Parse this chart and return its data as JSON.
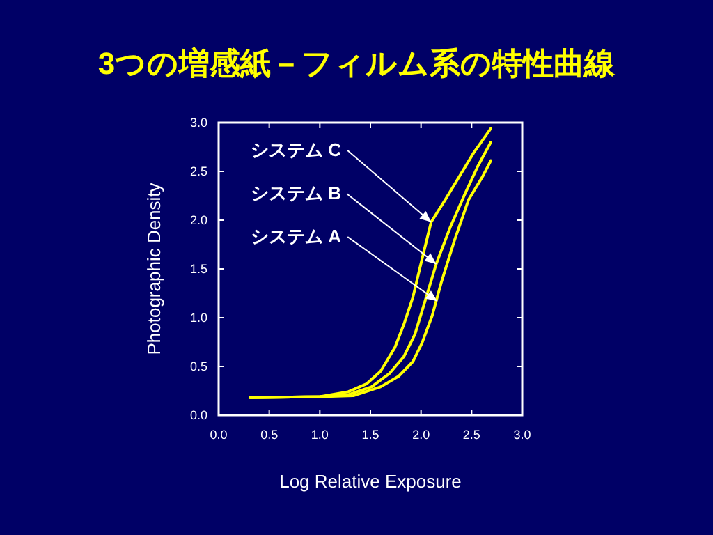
{
  "chart_data": {
    "type": "line",
    "title": "3つの増感紙－フィルム系の特性曲線",
    "xlabel": "Log Relative Exposure",
    "ylabel": "Photographic Density",
    "series": [
      {
        "color": "#ffff00",
        "x": [
          0.31,
          1.0,
          1.33,
          1.6,
          1.78,
          1.92,
          2.01,
          2.11,
          2.2,
          2.33,
          2.47,
          2.61,
          2.69
        ],
        "values": [
          0.18,
          0.19,
          0.2,
          0.29,
          0.4,
          0.55,
          0.74,
          1.02,
          1.36,
          1.79,
          2.21,
          2.45,
          2.61
        ]
      },
      {
        "color": "#ffff00",
        "x": [
          0.31,
          1.0,
          1.28,
          1.51,
          1.69,
          1.83,
          1.94,
          2.04,
          2.15,
          2.29,
          2.43,
          2.56,
          2.69
        ],
        "values": [
          0.18,
          0.19,
          0.21,
          0.29,
          0.43,
          0.6,
          0.83,
          1.17,
          1.55,
          1.93,
          2.26,
          2.55,
          2.8
        ]
      },
      {
        "color": "#ffff00",
        "x": [
          0.31,
          1.0,
          1.28,
          1.46,
          1.6,
          1.74,
          1.83,
          1.92,
          2.01,
          2.1,
          2.24,
          2.38,
          2.52,
          2.69
        ],
        "values": [
          0.18,
          0.19,
          0.24,
          0.32,
          0.45,
          0.69,
          0.93,
          1.21,
          1.6,
          1.98,
          2.21,
          2.45,
          2.69,
          2.94
        ]
      }
    ],
    "annotations": [
      {
        "text": "システム C",
        "x": 2.1,
        "y": 1.98
      },
      {
        "text": "システム B",
        "x": 2.15,
        "y": 1.55
      },
      {
        "text": "システム A",
        "x": 2.16,
        "y": 1.17
      }
    ],
    "xlim": [
      0,
      3
    ],
    "ylim": [
      0,
      3
    ],
    "xticks": [
      {
        "value": 0,
        "label": "0.0"
      },
      {
        "value": 0.5,
        "label": "0.5"
      },
      {
        "value": 1,
        "label": "1.0"
      },
      {
        "value": 1.5,
        "label": "1.5"
      },
      {
        "value": 2,
        "label": "2.0"
      },
      {
        "value": 2.5,
        "label": "2.5"
      },
      {
        "value": 3,
        "label": "3.0"
      }
    ],
    "yticks": [
      {
        "value": 0,
        "label": "0.0"
      },
      {
        "value": 0.5,
        "label": "0.5"
      },
      {
        "value": 1,
        "label": "1.0"
      },
      {
        "value": 1.5,
        "label": "1.5"
      },
      {
        "value": 2,
        "label": "2.0"
      },
      {
        "value": 2.5,
        "label": "2.5"
      },
      {
        "value": 3,
        "label": "3.0"
      }
    ]
  }
}
